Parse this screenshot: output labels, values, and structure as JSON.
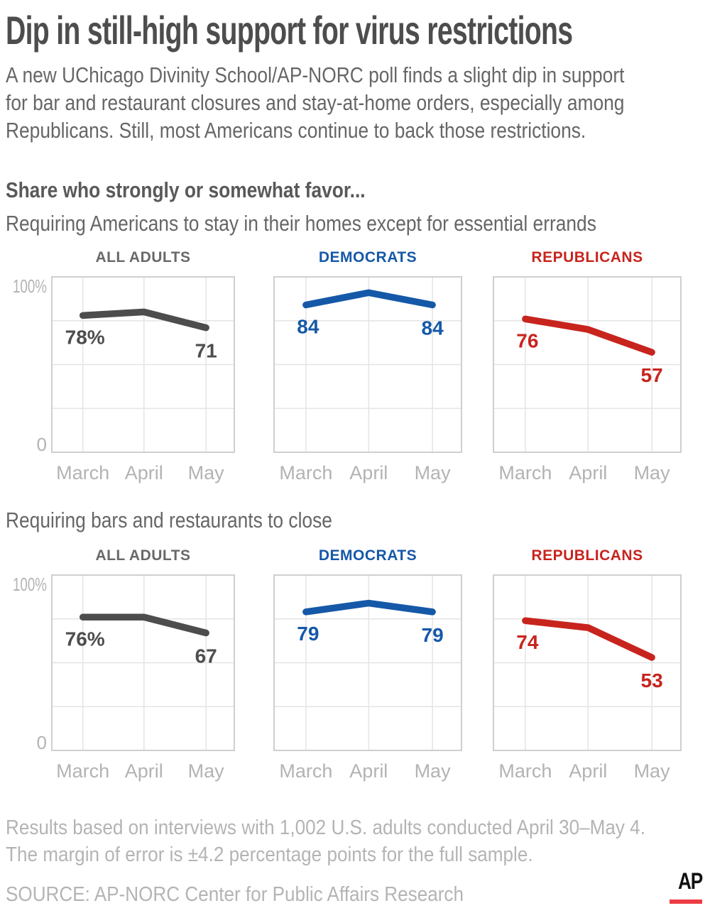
{
  "page": {
    "title": "Dip in still-high support for virus restrictions",
    "intro_lines": [
      "A new UChicago Divinity School/AP-NORC poll finds a slight dip in support",
      "for bar and restaurant closures and stay-at-home orders, especially among",
      "Republicans. Still, most Americans continue to back those restrictions."
    ],
    "favor_label": "Share who strongly or somewhat favor..."
  },
  "chart_data": [
    {
      "type": "line",
      "title": "Requiring Americans to stay in their homes except for essential errands",
      "categories": [
        "March",
        "April",
        "May"
      ],
      "ylim": [
        0,
        100
      ],
      "ytick_top": "100%",
      "ytick_bottom": "0",
      "grid": true,
      "series": [
        {
          "name": "ALL ADULTS",
          "color": "#4d4d4d",
          "header_color": "#696969",
          "values": [
            78,
            80,
            71
          ],
          "point_labels": [
            "78%",
            null,
            "71"
          ]
        },
        {
          "name": "DEMOCRATS",
          "color": "#1558a8",
          "header_color": "#1558a8",
          "values": [
            84,
            91,
            84
          ],
          "point_labels": [
            "84",
            null,
            "84"
          ]
        },
        {
          "name": "REPUBLICANS",
          "color": "#c8241e",
          "header_color": "#c8241e",
          "values": [
            76,
            70,
            57
          ],
          "point_labels": [
            "76",
            null,
            "57"
          ]
        }
      ]
    },
    {
      "type": "line",
      "title": "Requiring bars and restaurants to close",
      "categories": [
        "March",
        "April",
        "May"
      ],
      "ylim": [
        0,
        100
      ],
      "ytick_top": "100%",
      "ytick_bottom": "0",
      "grid": true,
      "series": [
        {
          "name": "ALL ADULTS",
          "color": "#4d4d4d",
          "header_color": "#696969",
          "values": [
            76,
            76,
            67
          ],
          "point_labels": [
            "76%",
            null,
            "67"
          ]
        },
        {
          "name": "DEMOCRATS",
          "color": "#1558a8",
          "header_color": "#1558a8",
          "values": [
            79,
            84,
            79
          ],
          "point_labels": [
            "79",
            null,
            "79"
          ]
        },
        {
          "name": "REPUBLICANS",
          "color": "#c8241e",
          "header_color": "#c8241e",
          "values": [
            74,
            70,
            53
          ],
          "point_labels": [
            "74",
            null,
            "53"
          ]
        }
      ]
    }
  ],
  "footer": {
    "note_lines": [
      "Results based on interviews with 1,002 U.S. adults conducted April 30–May 4.",
      "The margin of error is ±4.2 percentage points for the full sample."
    ],
    "source": "SOURCE: AP-NORC Center for Public Affairs Research",
    "logo_text": "AP"
  },
  "colors": {
    "title_text": "#4d4d4d",
    "body_text": "#666666",
    "axis_text": "#b3b3b3",
    "grid_line": "#e4e4e4",
    "plot_border": "#cfcfcf",
    "footer_text": "#b4b4b4",
    "logo_text": "#111111",
    "logo_bar": "#ee3b43"
  }
}
